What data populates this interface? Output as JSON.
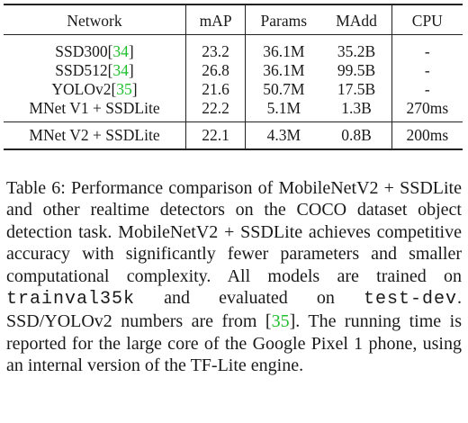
{
  "table": {
    "headers": [
      "Network",
      "mAP",
      "Params",
      "MAdd",
      "CPU"
    ],
    "rows": [
      {
        "network": "SSD300",
        "cite": "34",
        "map": "23.2",
        "params": "36.1M",
        "madd": "35.2B",
        "cpu": "-"
      },
      {
        "network": "SSD512",
        "cite": "34",
        "map": "26.8",
        "params": "36.1M",
        "madd": "99.5B",
        "cpu": "-"
      },
      {
        "network": "YOLOv2",
        "cite": "35",
        "map": "21.6",
        "params": "50.7M",
        "madd": "17.5B",
        "cpu": "-"
      },
      {
        "network": "MNet V1 + SSDLite",
        "map": "22.2",
        "params": "5.1M",
        "madd": "1.3B",
        "cpu": "270ms"
      },
      {
        "network": "MNet V2 + SSDLite",
        "map": "22.1",
        "params": "4.3M",
        "madd": "0.8B",
        "cpu": "200ms"
      }
    ]
  },
  "caption": {
    "part1": "Table 6: Performance comparison of MobileNetV2 + SSDLite and other realtime detectors on the COCO dataset object detection task. MobileNetV2 + SSDLite achieves competitive accuracy with significantly fewer parameters and smaller computational complexity. All models are trained on ",
    "code1": "trainval35k",
    "part2": " and evaluated on ",
    "code2": "test-dev",
    "part3": ". SSD/YOLOv2 numbers are from [",
    "cite": "35",
    "part4": "]. The running time is reported for the large core of the Google Pixel 1 phone, using an internal version of the TF-Lite engine."
  },
  "colors": {
    "citation": "#1fbf2e",
    "text": "#1a1a1a",
    "rule": "#222222"
  }
}
